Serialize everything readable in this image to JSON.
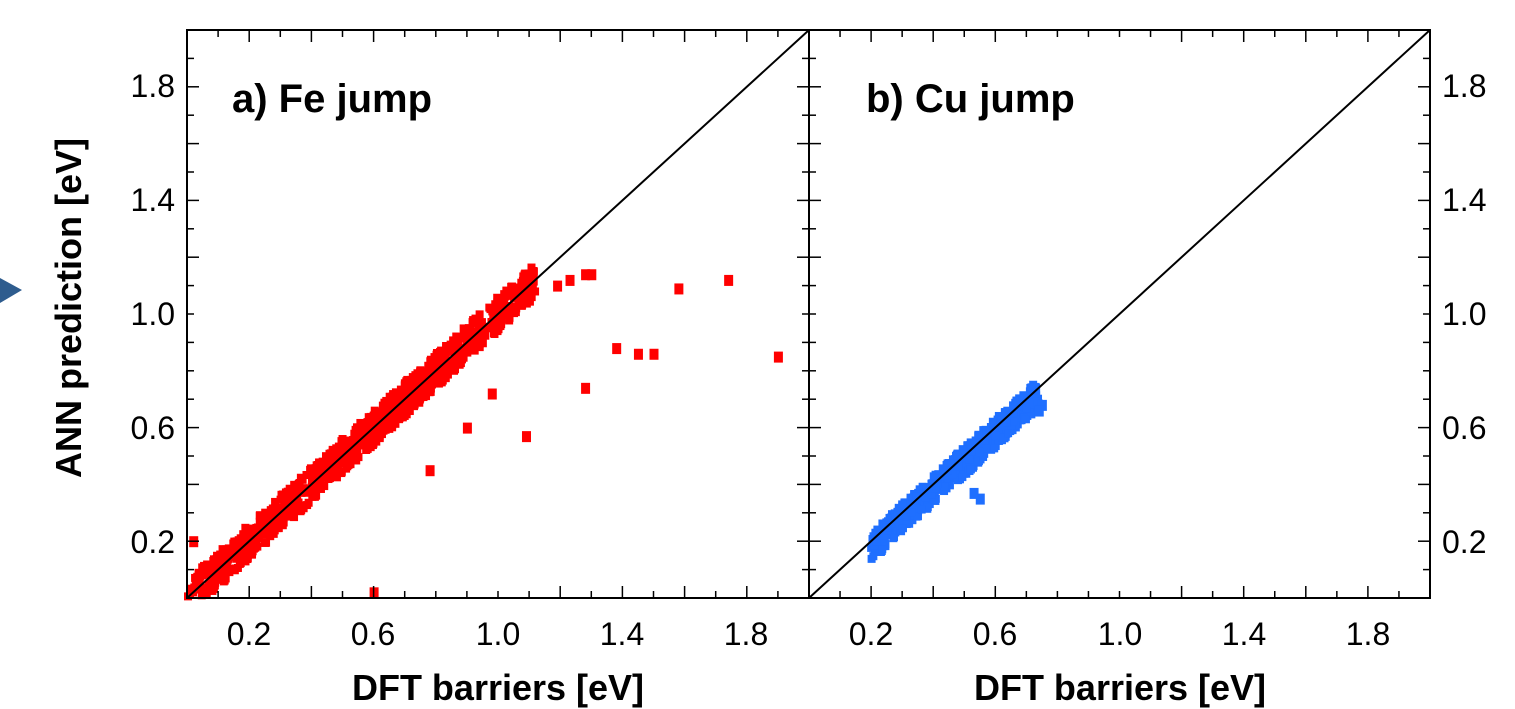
{
  "colors": {
    "fe": "#ff0000",
    "cu": "#1f6fff",
    "arrow": "#2e5c8e",
    "axis": "#000000"
  },
  "chart_data": [
    {
      "type": "scatter",
      "panel_label": "a) Fe jump",
      "xlabel": "DFT barriers [eV]",
      "ylabel": "ANN prediction [eV]",
      "xlim": [
        0.0,
        2.0
      ],
      "ylim": [
        0.0,
        2.0
      ],
      "xticks": [
        "0.2",
        "0.6",
        "1.0",
        "1.4",
        "1.8"
      ],
      "yticks": [
        "0.2",
        "0.6",
        "1.0",
        "1.4",
        "1.8"
      ],
      "reference_line": "y = x",
      "grid": false,
      "series": [
        {
          "color": "#ff0000",
          "band": {
            "x_range": [
              0.0,
              1.12
            ],
            "offset": 0.0,
            "half_width": 0.06
          },
          "outliers": [
            [
              0.02,
              0.2
            ],
            [
              0.6,
              0.02
            ],
            [
              0.78,
              0.45
            ],
            [
              0.9,
              0.6
            ],
            [
              0.98,
              0.72
            ],
            [
              1.09,
              0.57
            ],
            [
              1.28,
              0.74
            ],
            [
              1.38,
              0.88
            ],
            [
              1.45,
              0.86
            ],
            [
              1.5,
              0.86
            ],
            [
              1.19,
              1.1
            ],
            [
              1.23,
              1.12
            ],
            [
              1.28,
              1.14
            ],
            [
              1.3,
              1.14
            ],
            [
              1.58,
              1.09
            ],
            [
              1.74,
              1.12
            ],
            [
              1.9,
              0.85
            ]
          ]
        }
      ]
    },
    {
      "type": "scatter",
      "panel_label": "b) Cu jump",
      "xlabel": "DFT barriers [eV]",
      "ylabel": "",
      "xlim": [
        0.0,
        2.0
      ],
      "ylim": [
        0.0,
        2.0
      ],
      "xticks": [
        "0.2",
        "0.6",
        "1.0",
        "1.4",
        "1.8"
      ],
      "yticks": [
        "0.2",
        "0.6",
        "1.0",
        "1.4",
        "1.8"
      ],
      "reference_line": "y = x",
      "grid": false,
      "series": [
        {
          "color": "#1f6fff",
          "band": {
            "x_range": [
              0.2,
              0.74
            ],
            "offset": -0.02,
            "half_width": 0.05
          },
          "outliers": [
            [
              0.55,
              0.35
            ],
            [
              0.53,
              0.37
            ],
            [
              0.75,
              0.68
            ],
            [
              0.74,
              0.66
            ]
          ]
        }
      ]
    }
  ]
}
